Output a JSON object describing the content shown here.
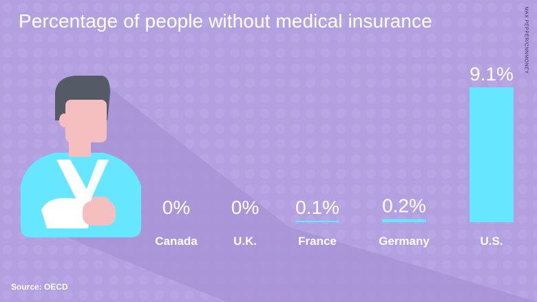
{
  "header": {
    "title": "Percentage of people without medical insurance"
  },
  "credit": "MAX PEPPER/CNNMONEY",
  "footer": {
    "source": "Source: OECD"
  },
  "colors": {
    "background": "#b3a0e0",
    "bar": "#66e6ff",
    "text": "#ffffff",
    "shadow": "#a592d6"
  },
  "illustration": {
    "name": "man-with-arm-sling-icon"
  },
  "chart_data": {
    "type": "bar",
    "title": "Percentage of people without medical insurance",
    "categories": [
      "Canada",
      "U.K.",
      "France",
      "Germany",
      "U.S."
    ],
    "values": [
      0,
      0,
      0.1,
      0.2,
      9.1
    ],
    "value_labels": [
      "0%",
      "0%",
      "0.1%",
      "0.2%",
      "9.1%"
    ],
    "ylim": [
      0,
      9.1
    ],
    "xlabel": "",
    "ylabel": "",
    "grid": false,
    "legend": "none"
  }
}
